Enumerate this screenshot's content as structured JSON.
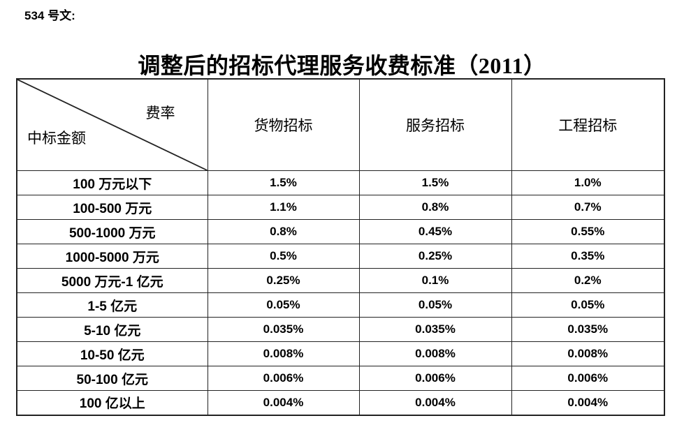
{
  "page": {
    "doc_label": "534 号文:",
    "title": "调整后的招标代理服务收费标准（2011）"
  },
  "table": {
    "corner": {
      "top_right": "费率",
      "bottom_left": "中标金额"
    },
    "columns": [
      "货物招标",
      "服务招标",
      "工程招标"
    ],
    "rows": [
      {
        "label": "100 万元以下",
        "values": [
          "1.5%",
          "1.5%",
          "1.0%"
        ]
      },
      {
        "label": "100-500 万元",
        "values": [
          "1.1%",
          "0.8%",
          "0.7%"
        ]
      },
      {
        "label": "500-1000 万元",
        "values": [
          "0.8%",
          "0.45%",
          "0.55%"
        ]
      },
      {
        "label": "1000-5000 万元",
        "values": [
          "0.5%",
          "0.25%",
          "0.35%"
        ]
      },
      {
        "label": "5000 万元-1 亿元",
        "values": [
          "0.25%",
          "0.1%",
          "0.2%"
        ]
      },
      {
        "label": "1-5 亿元",
        "values": [
          "0.05%",
          "0.05%",
          "0.05%"
        ]
      },
      {
        "label": "5-10 亿元",
        "values": [
          "0.035%",
          "0.035%",
          "0.035%"
        ]
      },
      {
        "label": "10-50 亿元",
        "values": [
          "0.008%",
          "0.008%",
          "0.008%"
        ]
      },
      {
        "label": "50-100 亿元",
        "values": [
          "0.006%",
          "0.006%",
          "0.006%"
        ]
      },
      {
        "label": "100 亿以上",
        "values": [
          "0.004%",
          "0.004%",
          "0.004%"
        ]
      }
    ]
  },
  "colors": {
    "text": "#000000",
    "border": "#222222",
    "background": "#ffffff"
  }
}
